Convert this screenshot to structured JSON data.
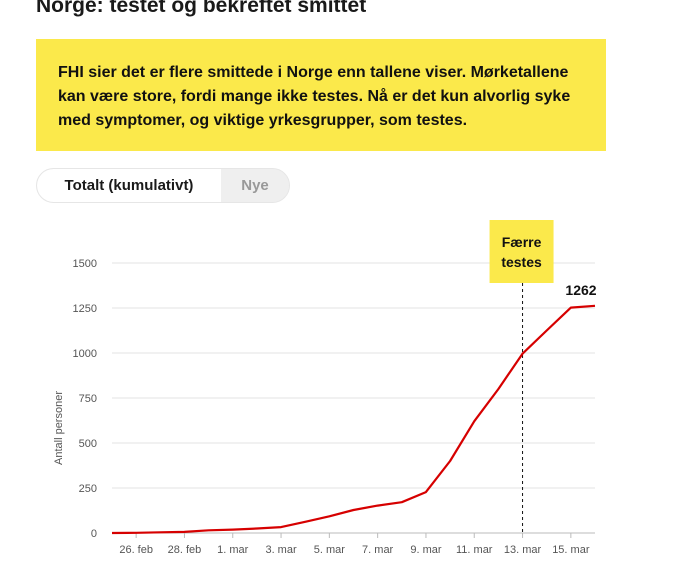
{
  "page": {
    "title": "Norge: testet og bekreftet smittet",
    "note": "FHI sier det er flere smittede i Norge enn tallene viser. Mørketallene kan være store, fordi mange ikke testes. Nå er det kun alvorlig syke med symptomer, og viktige yrkesgrupper, som testes."
  },
  "toggle": {
    "total_label": "Totalt (kumulativt)",
    "new_label": "Nye"
  },
  "colors": {
    "line": "#d60000",
    "note_bg": "#fbe94b"
  },
  "chart_data": {
    "type": "line",
    "ylabel": "Antall personer",
    "ylim": [
      0,
      1500
    ],
    "yticks": [
      0,
      250,
      500,
      750,
      1000,
      1250,
      1500
    ],
    "x_tick_labels": [
      "26. feb",
      "28. feb",
      "1. mar",
      "3. mar",
      "5. mar",
      "7. mar",
      "9. mar",
      "11. mar",
      "13. mar",
      "15. mar"
    ],
    "x": [
      "25. feb",
      "26. feb",
      "27. feb",
      "28. feb",
      "29. feb",
      "1. mar",
      "2. mar",
      "3. mar",
      "4. mar",
      "5. mar",
      "6. mar",
      "7. mar",
      "8. mar",
      "9. mar",
      "10. mar",
      "11. mar",
      "12. mar",
      "13. mar",
      "14. mar",
      "15. mar",
      "16. mar"
    ],
    "series": [
      {
        "values": [
          0,
          1,
          4,
          6,
          15,
          19,
          25,
          33,
          62,
          93,
          128,
          152,
          171,
          227,
          400,
          621,
          800,
          996,
          1125,
          1252,
          1262
        ]
      }
    ],
    "grid": true,
    "marker_line": {
      "x": "13. mar",
      "label": "Færre testes"
    },
    "last_value_label": "1262"
  }
}
